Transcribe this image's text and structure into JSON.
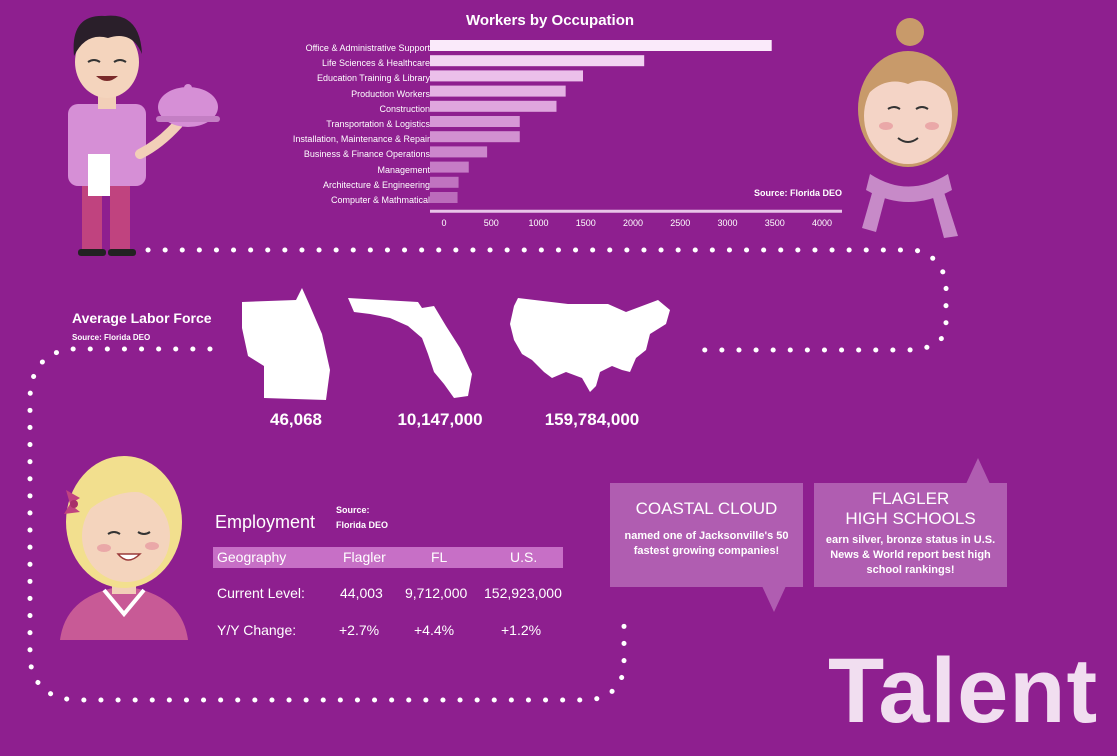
{
  "chart_data": {
    "type": "bar",
    "orientation": "horizontal",
    "title": "Workers by Occupation",
    "categories": [
      "Office & Administrative Support",
      "Life Sciences & Healthcare",
      "Education Training & Library",
      "Production Workers",
      "Construction",
      "Transportation & Logistics",
      "Installation, Maintenance & Repair",
      "Business & Finance Operations",
      "Management",
      "Architecture & Engineering",
      "Computer & Mathmatical"
    ],
    "values": [
      3350,
      2100,
      1500,
      1330,
      1240,
      880,
      880,
      560,
      380,
      280,
      270
    ],
    "xlim": [
      0,
      4000
    ],
    "xticks": [
      "0",
      "500",
      "1000",
      "1500",
      "2000",
      "2500",
      "3000",
      "3500",
      "4000"
    ],
    "source": "Source: Florida DEO",
    "colors": [
      "#faeafa",
      "#f2d3f2",
      "#ebc0ea",
      "#e4b2e3",
      "#dfa6de",
      "#d698d6",
      "#d291d1",
      "#cc86cc",
      "#c67cc6",
      "#c073c0",
      "#bb6cbb"
    ]
  },
  "labor_force": {
    "title": "Average Labor Force",
    "source": "Source: Florida DEO",
    "values": [
      "46,068",
      "10,147,000",
      "159,784,000"
    ]
  },
  "employment": {
    "title": "Employment",
    "source_line1": "Source:",
    "source_line2": "Florida DEO",
    "headers": [
      "Geography",
      "Flagler",
      "FL",
      "U.S."
    ],
    "rows": [
      {
        "label": "Current Level:",
        "values": [
          "44,003",
          "9,712,000",
          "152,923,000"
        ]
      },
      {
        "label": "Y/Y Change:",
        "values": [
          "+2.7%",
          "+4.4%",
          "+1.2%"
        ]
      }
    ]
  },
  "callouts": {
    "coastal": {
      "heading": "COASTAL CLOUD",
      "line1": "named one of Jacksonville's 50",
      "line2": "fastest growing companies!"
    },
    "flagler": {
      "heading1": "FLAGLER",
      "heading2": "HIGH SCHOOLS",
      "line1": "earn silver, bronze status in U.S.",
      "line2": "News & World report best high",
      "line3": "school rankings!"
    }
  },
  "talent": "Talent",
  "colors": {
    "background": "#8e1f8f",
    "callout": "#b05db1",
    "table_header": "#c76fc6"
  }
}
